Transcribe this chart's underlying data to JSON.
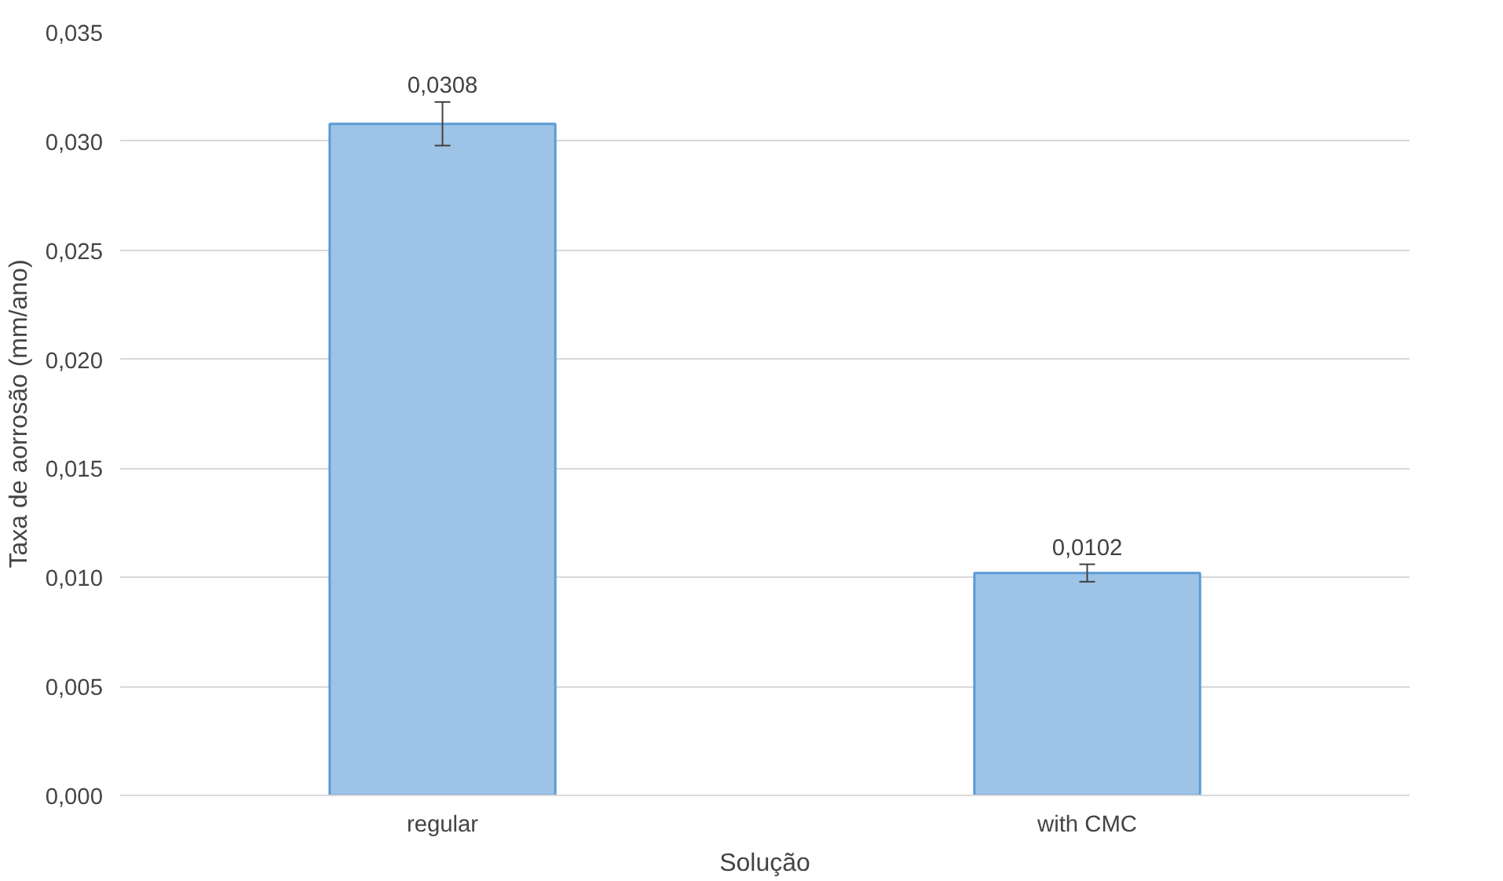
{
  "chart_data": {
    "type": "bar",
    "xlabel": "Solução",
    "ylabel": "Taxa de aorrosão (mm/ano)",
    "categories": [
      "regular",
      "with CMC"
    ],
    "values": [
      0.0308,
      0.0102
    ],
    "errors": [
      0.001,
      0.0004
    ],
    "value_labels": [
      "0,0308",
      "0,0102"
    ],
    "color": "#9dc3e6",
    "ylim": [
      0,
      0.035
    ],
    "yticks": [
      {
        "value": 0,
        "label": "0,000"
      },
      {
        "value": 0.005,
        "label": "0,005"
      },
      {
        "value": 0.01,
        "label": "0,010"
      },
      {
        "value": 0.015,
        "label": "0,015"
      },
      {
        "value": 0.02,
        "label": "0,020"
      },
      {
        "value": 0.025,
        "label": "0,025"
      },
      {
        "value": 0.03,
        "label": "0,030"
      },
      {
        "value": 0.035,
        "label": "0,035"
      }
    ],
    "grid": "y"
  }
}
